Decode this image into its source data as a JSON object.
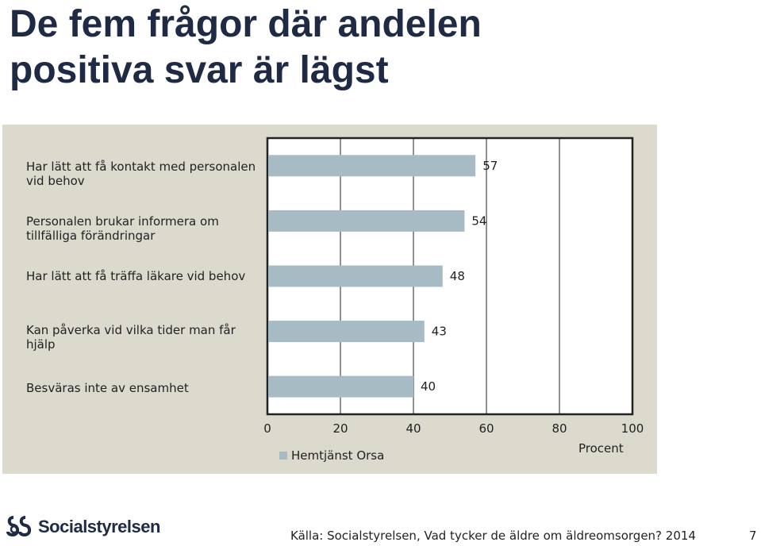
{
  "title": [
    "De fem frågor där andelen",
    "positiva svar är lägst"
  ],
  "chart_data": {
    "type": "bar",
    "orientation": "horizontal",
    "categories": [
      [
        "Har lätt att få kontakt med personalen",
        "vid behov"
      ],
      [
        "Personalen brukar informera om",
        "tillfälliga förändringar"
      ],
      [
        "Har lätt att få träffa läkare vid behov"
      ],
      [
        "Kan påverka vid vilka tider man får",
        "hjälp"
      ],
      [
        "Besväras inte av ensamhet"
      ]
    ],
    "series": [
      {
        "name": "Hemtjänst Orsa",
        "values": [
          57,
          54,
          48,
          43,
          40
        ]
      }
    ],
    "data_labels": [
      "57",
      "54",
      "48",
      "43",
      "40"
    ],
    "xlabel": "Procent",
    "ylabel": "",
    "xlim": [
      0,
      100
    ],
    "xticks": [
      0,
      20,
      40,
      60,
      80,
      100
    ],
    "tick_labels": [
      "0",
      "20",
      "40",
      "60",
      "80",
      "100"
    ],
    "grid": true,
    "legend_position": "bottom-left",
    "colors": {
      "bar": "#a7bbc4",
      "panel": "#dcd9cd",
      "grid": "#222222"
    }
  },
  "footer": {
    "logo_text": "Socialstyrelsen",
    "source": "Källa: Socialstyrelsen, Vad tycker de äldre om äldreomsorgen? 2014",
    "page_number": "7"
  }
}
